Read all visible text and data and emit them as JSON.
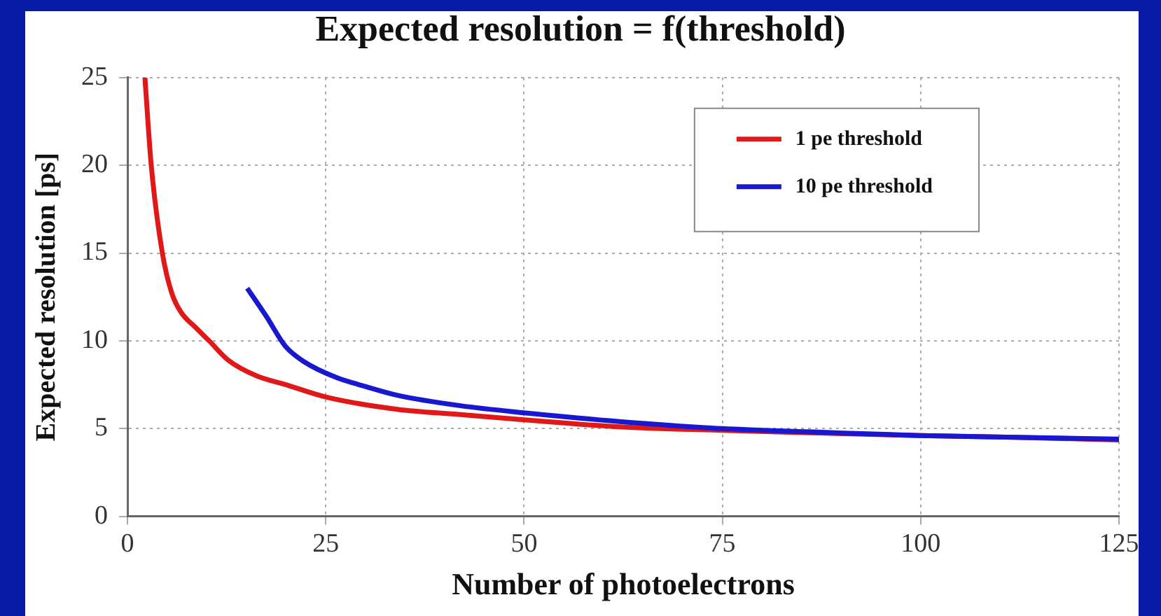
{
  "chart_data": {
    "type": "line",
    "title": "Expected resolution  = f(threshold)",
    "xlabel": "Number of photoelectrons",
    "ylabel": "Expected resolution [ps]",
    "series": [
      {
        "name": "1 pe threshold",
        "color": "#e01818",
        "x": [
          2.2,
          3,
          4.4,
          5.6,
          6.8,
          8.5,
          10.3,
          12.7,
          16.3,
          20,
          25,
          34,
          42,
          50,
          62,
          75,
          87,
          100,
          112,
          125
        ],
        "values": [
          25,
          20,
          15,
          12.7,
          11.6,
          10.8,
          10,
          8.9,
          8,
          7.5,
          6.8,
          6.1,
          5.8,
          5.5,
          5.1,
          4.9,
          4.75,
          4.6,
          4.5,
          4.35
        ]
      },
      {
        "name": "10 pe threshold",
        "color": "#1818d0",
        "x": [
          15.1,
          17.5,
          19.9,
          22.3,
          26.4,
          30,
          34,
          42,
          50,
          62,
          75,
          87,
          100,
          112,
          125
        ],
        "values": [
          13,
          11.4,
          9.7,
          8.8,
          7.9,
          7.4,
          6.9,
          6.3,
          5.9,
          5.4,
          5,
          4.8,
          4.6,
          4.5,
          4.4
        ]
      }
    ],
    "xlim": [
      0,
      125
    ],
    "xticks": [
      0,
      25,
      50,
      75,
      100,
      125
    ],
    "ylim": [
      0,
      25
    ],
    "yticks": [
      0,
      5,
      10,
      15,
      20,
      25
    ],
    "grid": true,
    "legend": "top right",
    "marker": "none",
    "line_style": "solid"
  }
}
